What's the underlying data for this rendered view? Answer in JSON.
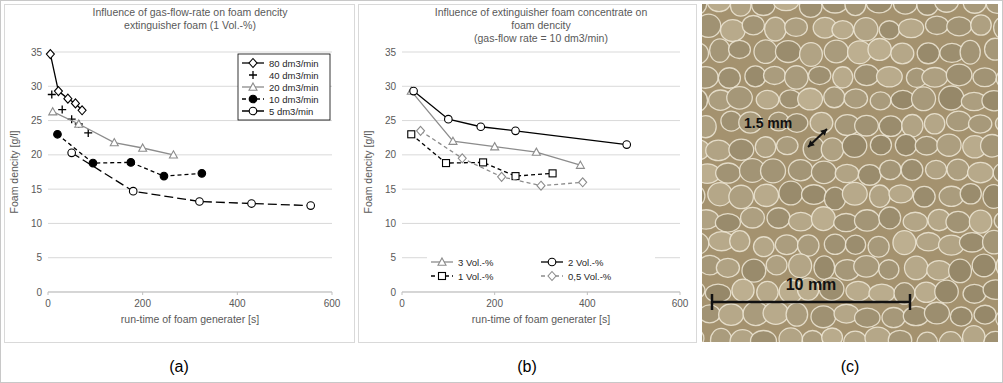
{
  "chart_data": [
    {
      "type": "line",
      "title": "Influence of gas-flow-rate on foam dencity",
      "subtitle": "extinguisher foam (1 Vol.-%)",
      "x_label": "run-time of foam generater [s]",
      "y_label": "Foam dencity [g/l]",
      "xlim": [
        0,
        600
      ],
      "xticks": [
        0,
        200,
        400,
        600
      ],
      "ylim": [
        0,
        35
      ],
      "yticks": [
        0,
        5,
        10,
        15,
        20,
        25,
        30,
        35
      ],
      "grid": true,
      "legend": "top-right",
      "series": [
        {
          "name": "80 dm3/min",
          "color": "#000000",
          "marker": "diamond-open",
          "line_style": "solid",
          "x": [
            5,
            22,
            42,
            58,
            72
          ],
          "values": [
            34.7,
            29.3,
            28.2,
            27.5,
            26.5
          ]
        },
        {
          "name": "40 dm3/min",
          "color": "#000000",
          "marker": "plus",
          "line_style": "none",
          "x": [
            8,
            30,
            50,
            65,
            85
          ],
          "values": [
            28.8,
            26.6,
            25.2,
            24.5,
            23.2
          ]
        },
        {
          "name": "20 dm3/min",
          "color": "#8c8c8c",
          "marker": "triangle-open",
          "line_style": "solid",
          "x": [
            10,
            65,
            140,
            200,
            265
          ],
          "values": [
            26.3,
            24.5,
            21.8,
            21,
            20
          ]
        },
        {
          "name": "10 dm3/min",
          "color": "#000000",
          "marker": "circle-filled",
          "line_style": "dashed",
          "x": [
            20,
            95,
            175,
            245,
            325
          ],
          "values": [
            23,
            18.8,
            18.9,
            16.9,
            17.3
          ]
        },
        {
          "name": "5 dm3/min",
          "color": "#000000",
          "marker": "circle-open",
          "line_style": "long-dashed",
          "x": [
            50,
            180,
            320,
            430,
            555
          ],
          "values": [
            20.3,
            14.7,
            13.2,
            12.9,
            12.6
          ]
        }
      ]
    },
    {
      "type": "line",
      "title": "Influence of extinguisher foam concentrate on foam dencity",
      "subtitle": "(gas-flow rate = 10 dm3/min)",
      "x_label": "run-time of foam generater [s]",
      "y_label": "Foam dencity [g/l]",
      "xlim": [
        0,
        600
      ],
      "xticks": [
        0,
        200,
        400,
        600
      ],
      "ylim": [
        0,
        35
      ],
      "yticks": [
        0,
        5,
        10,
        15,
        20,
        25,
        30,
        35
      ],
      "grid": true,
      "legend": "bottom",
      "series": [
        {
          "name": "3 Vol.-%",
          "color": "#8c8c8c",
          "marker": "triangle-open",
          "line_style": "solid",
          "x": [
            20,
            110,
            200,
            290,
            385
          ],
          "values": [
            29.3,
            22,
            21.2,
            20.4,
            18.5
          ]
        },
        {
          "name": "2 Vol.-%",
          "color": "#000000",
          "marker": "circle-open",
          "line_style": "solid",
          "x": [
            25,
            100,
            170,
            245,
            485
          ],
          "values": [
            29.3,
            25.2,
            24.1,
            23.5,
            21.5
          ]
        },
        {
          "name": "1 Vol.-%",
          "color": "#000000",
          "marker": "square-open",
          "line_style": "dashed",
          "x": [
            20,
            95,
            175,
            245,
            325
          ],
          "values": [
            23,
            18.8,
            18.9,
            16.9,
            17.3
          ]
        },
        {
          "name": "0,5 Vol.-%",
          "color": "#8c8c8c",
          "marker": "diamond-open",
          "line_style": "dashed",
          "x": [
            40,
            130,
            215,
            300,
            390
          ],
          "values": [
            23.5,
            19.5,
            16.8,
            15.5,
            16
          ]
        }
      ]
    }
  ],
  "photo": {
    "feature_label": "1.5 mm",
    "scale_bar_label": "10 mm"
  },
  "panel_labels": [
    "(a)",
    "(b)",
    "(c)"
  ]
}
